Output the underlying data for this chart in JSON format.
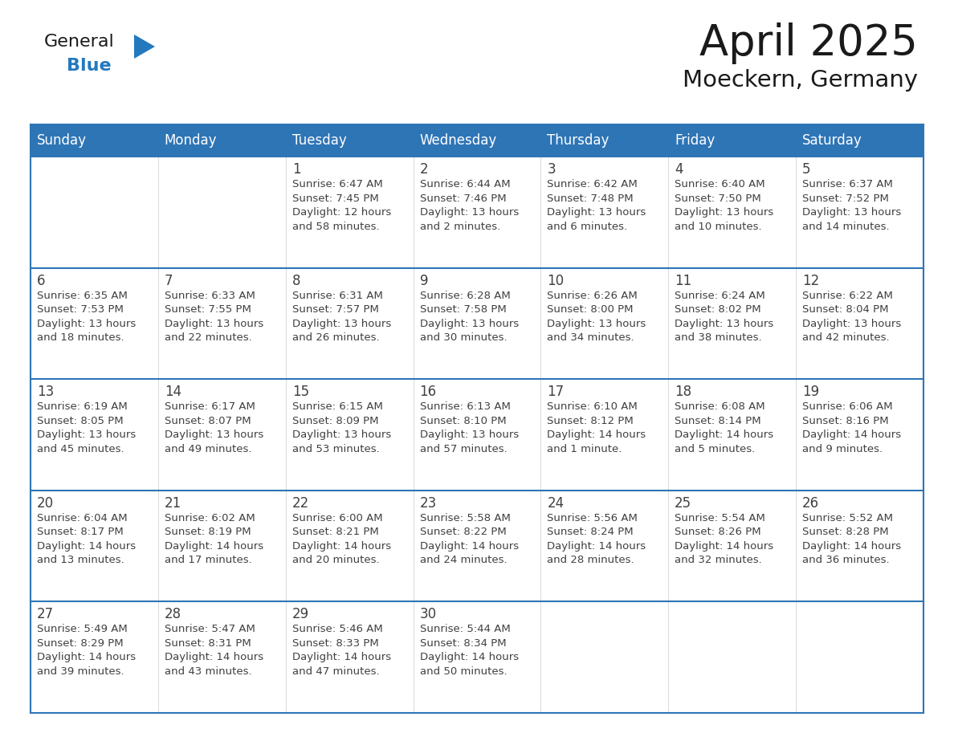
{
  "title": "April 2025",
  "subtitle": "Moeckern, Germany",
  "header_color": "#2E75B6",
  "header_text_color": "#FFFFFF",
  "cell_bg_color": "#FFFFFF",
  "cell_bg_alt": "#F0F0F0",
  "border_color": "#2E75B6",
  "cell_border_color": "#CCCCCC",
  "text_color": "#404040",
  "days_of_week": [
    "Sunday",
    "Monday",
    "Tuesday",
    "Wednesday",
    "Thursday",
    "Friday",
    "Saturday"
  ],
  "weeks": [
    [
      {
        "day": "",
        "info": ""
      },
      {
        "day": "",
        "info": ""
      },
      {
        "day": "1",
        "info": "Sunrise: 6:47 AM\nSunset: 7:45 PM\nDaylight: 12 hours\nand 58 minutes."
      },
      {
        "day": "2",
        "info": "Sunrise: 6:44 AM\nSunset: 7:46 PM\nDaylight: 13 hours\nand 2 minutes."
      },
      {
        "day": "3",
        "info": "Sunrise: 6:42 AM\nSunset: 7:48 PM\nDaylight: 13 hours\nand 6 minutes."
      },
      {
        "day": "4",
        "info": "Sunrise: 6:40 AM\nSunset: 7:50 PM\nDaylight: 13 hours\nand 10 minutes."
      },
      {
        "day": "5",
        "info": "Sunrise: 6:37 AM\nSunset: 7:52 PM\nDaylight: 13 hours\nand 14 minutes."
      }
    ],
    [
      {
        "day": "6",
        "info": "Sunrise: 6:35 AM\nSunset: 7:53 PM\nDaylight: 13 hours\nand 18 minutes."
      },
      {
        "day": "7",
        "info": "Sunrise: 6:33 AM\nSunset: 7:55 PM\nDaylight: 13 hours\nand 22 minutes."
      },
      {
        "day": "8",
        "info": "Sunrise: 6:31 AM\nSunset: 7:57 PM\nDaylight: 13 hours\nand 26 minutes."
      },
      {
        "day": "9",
        "info": "Sunrise: 6:28 AM\nSunset: 7:58 PM\nDaylight: 13 hours\nand 30 minutes."
      },
      {
        "day": "10",
        "info": "Sunrise: 6:26 AM\nSunset: 8:00 PM\nDaylight: 13 hours\nand 34 minutes."
      },
      {
        "day": "11",
        "info": "Sunrise: 6:24 AM\nSunset: 8:02 PM\nDaylight: 13 hours\nand 38 minutes."
      },
      {
        "day": "12",
        "info": "Sunrise: 6:22 AM\nSunset: 8:04 PM\nDaylight: 13 hours\nand 42 minutes."
      }
    ],
    [
      {
        "day": "13",
        "info": "Sunrise: 6:19 AM\nSunset: 8:05 PM\nDaylight: 13 hours\nand 45 minutes."
      },
      {
        "day": "14",
        "info": "Sunrise: 6:17 AM\nSunset: 8:07 PM\nDaylight: 13 hours\nand 49 minutes."
      },
      {
        "day": "15",
        "info": "Sunrise: 6:15 AM\nSunset: 8:09 PM\nDaylight: 13 hours\nand 53 minutes."
      },
      {
        "day": "16",
        "info": "Sunrise: 6:13 AM\nSunset: 8:10 PM\nDaylight: 13 hours\nand 57 minutes."
      },
      {
        "day": "17",
        "info": "Sunrise: 6:10 AM\nSunset: 8:12 PM\nDaylight: 14 hours\nand 1 minute."
      },
      {
        "day": "18",
        "info": "Sunrise: 6:08 AM\nSunset: 8:14 PM\nDaylight: 14 hours\nand 5 minutes."
      },
      {
        "day": "19",
        "info": "Sunrise: 6:06 AM\nSunset: 8:16 PM\nDaylight: 14 hours\nand 9 minutes."
      }
    ],
    [
      {
        "day": "20",
        "info": "Sunrise: 6:04 AM\nSunset: 8:17 PM\nDaylight: 14 hours\nand 13 minutes."
      },
      {
        "day": "21",
        "info": "Sunrise: 6:02 AM\nSunset: 8:19 PM\nDaylight: 14 hours\nand 17 minutes."
      },
      {
        "day": "22",
        "info": "Sunrise: 6:00 AM\nSunset: 8:21 PM\nDaylight: 14 hours\nand 20 minutes."
      },
      {
        "day": "23",
        "info": "Sunrise: 5:58 AM\nSunset: 8:22 PM\nDaylight: 14 hours\nand 24 minutes."
      },
      {
        "day": "24",
        "info": "Sunrise: 5:56 AM\nSunset: 8:24 PM\nDaylight: 14 hours\nand 28 minutes."
      },
      {
        "day": "25",
        "info": "Sunrise: 5:54 AM\nSunset: 8:26 PM\nDaylight: 14 hours\nand 32 minutes."
      },
      {
        "day": "26",
        "info": "Sunrise: 5:52 AM\nSunset: 8:28 PM\nDaylight: 14 hours\nand 36 minutes."
      }
    ],
    [
      {
        "day": "27",
        "info": "Sunrise: 5:49 AM\nSunset: 8:29 PM\nDaylight: 14 hours\nand 39 minutes."
      },
      {
        "day": "28",
        "info": "Sunrise: 5:47 AM\nSunset: 8:31 PM\nDaylight: 14 hours\nand 43 minutes."
      },
      {
        "day": "29",
        "info": "Sunrise: 5:46 AM\nSunset: 8:33 PM\nDaylight: 14 hours\nand 47 minutes."
      },
      {
        "day": "30",
        "info": "Sunrise: 5:44 AM\nSunset: 8:34 PM\nDaylight: 14 hours\nand 50 minutes."
      },
      {
        "day": "",
        "info": ""
      },
      {
        "day": "",
        "info": ""
      },
      {
        "day": "",
        "info": ""
      }
    ]
  ],
  "logo_general_color": "#1a1a1a",
  "logo_blue_color": "#2479BE",
  "title_fontsize": 38,
  "subtitle_fontsize": 21,
  "header_fontsize": 12,
  "day_num_fontsize": 12,
  "info_fontsize": 9.5
}
